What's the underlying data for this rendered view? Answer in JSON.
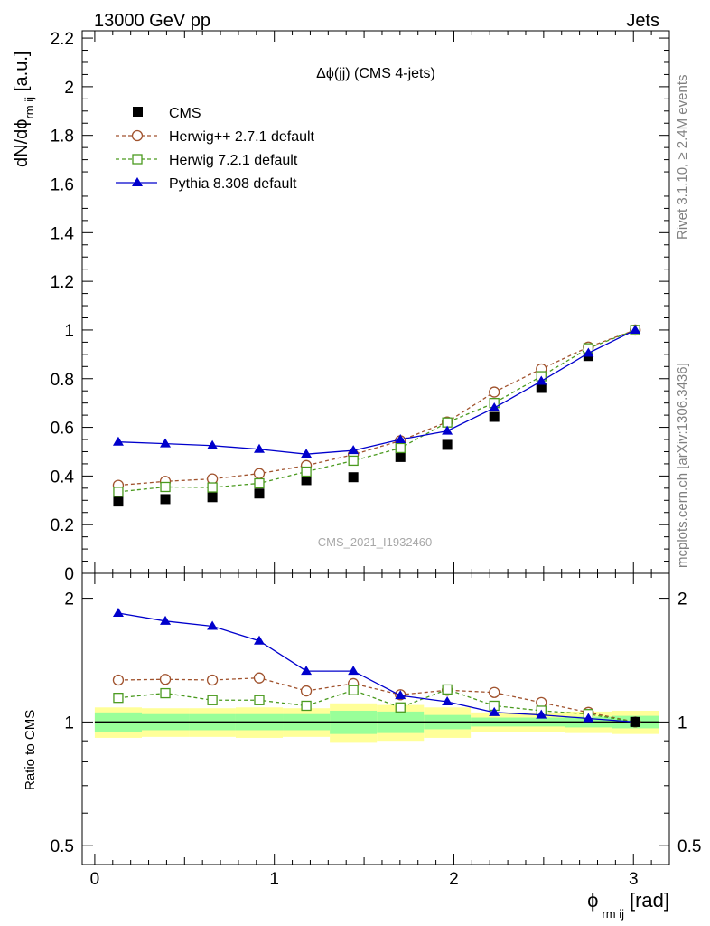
{
  "header": {
    "left": "13000 GeV pp",
    "right": "Jets"
  },
  "side": {
    "rivet": "Rivet 3.1.10, ≥ 2.4M events",
    "mcplots": "mcplots.cern.ch [arXiv:1306.3436]"
  },
  "watermark": "CMS_2021_I1932460",
  "chart_data": {
    "type": "line",
    "title": "Δϕ(jj) (CMS 4-jets)",
    "ylabel": "dN/dϕ rm ij [a.u.]",
    "ylabel_main": "dN/dϕ",
    "ylabel_sub": "rm ij",
    "ylabel_unit": "[a.u.]",
    "xlabel": "ϕ rm ij [rad]",
    "xlabel_main": "ϕ",
    "xlabel_sub": "rm ij",
    "xlabel_unit": "[rad]",
    "ratio_ylabel": "Ratio to CMS",
    "xlim": [
      -0.07,
      3.2
    ],
    "ylim": [
      0,
      2.23
    ],
    "ratio_ylim": [
      0.45,
      2.3
    ],
    "x_ticks": [
      "0",
      "1",
      "2",
      "3"
    ],
    "y_ticks": [
      "0",
      "0.2",
      "0.4",
      "0.6",
      "0.8",
      "1",
      "1.2",
      "1.4",
      "1.6",
      "1.8",
      "2",
      "2.2"
    ],
    "ratio_ticks": [
      "0.5",
      "1",
      "2"
    ],
    "x": [
      0.131,
      0.393,
      0.655,
      0.916,
      1.178,
      1.44,
      1.702,
      1.963,
      2.225,
      2.487,
      2.749,
      3.01
    ],
    "bin_edges": [
      0,
      0.262,
      0.524,
      0.785,
      1.047,
      1.309,
      1.571,
      1.833,
      2.094,
      2.356,
      2.618,
      2.88,
      3.14
    ],
    "series": [
      {
        "name": "CMS",
        "marker": "square-filled",
        "color": "#000000",
        "values": [
          0.295,
          0.305,
          0.313,
          0.328,
          0.383,
          0.395,
          0.478,
          0.528,
          0.643,
          0.762,
          0.893,
          1.0
        ]
      },
      {
        "name": "Herwig++ 2.7.1 default",
        "marker": "circle-open",
        "color": "#a0522d",
        "dash": true,
        "values": [
          0.362,
          0.378,
          0.388,
          0.41,
          0.443,
          0.488,
          0.545,
          0.622,
          0.745,
          0.84,
          0.93,
          1.0
        ]
      },
      {
        "name": "Herwig 7.2.1 default",
        "marker": "square-open",
        "color": "#4a9a1f",
        "dash": true,
        "values": [
          0.335,
          0.355,
          0.353,
          0.37,
          0.418,
          0.463,
          0.515,
          0.62,
          0.7,
          0.81,
          0.925,
          1.0
        ]
      },
      {
        "name": "Pythia 8.308 default",
        "marker": "triangle-filled",
        "color": "#0000cc",
        "values": [
          0.54,
          0.533,
          0.525,
          0.51,
          0.49,
          0.505,
          0.55,
          0.585,
          0.68,
          0.79,
          0.905,
          1.0
        ]
      }
    ],
    "ratio": {
      "series": [
        {
          "name": "Herwig++ 2.7.1 default",
          "values": [
            1.265,
            1.27,
            1.265,
            1.28,
            1.19,
            1.24,
            1.165,
            1.195,
            1.18,
            1.115,
            1.055,
            1.0
          ]
        },
        {
          "name": "Herwig 7.2.1 default",
          "values": [
            1.145,
            1.175,
            1.13,
            1.13,
            1.095,
            1.195,
            1.085,
            1.2,
            1.095,
            1.065,
            1.045,
            1.0
          ]
        },
        {
          "name": "Pythia 8.308 default",
          "values": [
            1.84,
            1.76,
            1.71,
            1.575,
            1.33,
            1.33,
            1.16,
            1.12,
            1.055,
            1.04,
            1.02,
            1.0
          ]
        }
      ],
      "band_stat": [
        0.055,
        0.045,
        0.045,
        0.045,
        0.045,
        0.065,
        0.06,
        0.04,
        0.025,
        0.025,
        0.03,
        0.035
      ],
      "band_total": [
        0.085,
        0.08,
        0.08,
        0.085,
        0.08,
        0.11,
        0.1,
        0.085,
        0.055,
        0.055,
        0.06,
        0.065
      ]
    }
  },
  "colors": {
    "band_yellow": "#ffff99",
    "band_green": "#99ff99"
  }
}
